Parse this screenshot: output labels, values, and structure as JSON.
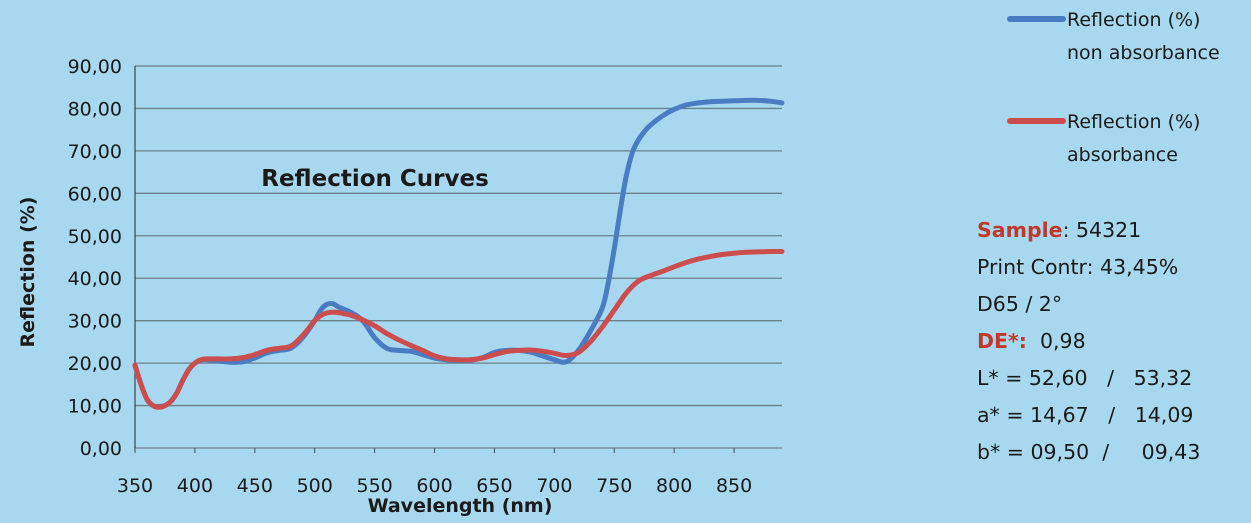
{
  "chart_data": {
    "type": "line",
    "title": "Reflection Curves",
    "xlabel": "Wavelength (nm)",
    "ylabel": "Reflection (%)",
    "xlim": [
      350,
      890
    ],
    "ylim": [
      0,
      90
    ],
    "xticks": [
      "350",
      "400",
      "450",
      "500",
      "550",
      "600",
      "650",
      "700",
      "750",
      "800",
      "850"
    ],
    "yticks": [
      "0,00",
      "10,00",
      "20,00",
      "30,00",
      "40,00",
      "50,00",
      "60,00",
      "70,00",
      "80,00",
      "90,00"
    ],
    "grid": "horizontal",
    "legend_position": "top-right",
    "series": [
      {
        "name": "Reflection (%) non absorbance",
        "color": "#4a7cc4",
        "x": [
          350,
          355,
          360,
          365,
          370,
          375,
          380,
          385,
          390,
          395,
          400,
          405,
          410,
          420,
          430,
          440,
          450,
          460,
          470,
          480,
          490,
          500,
          505,
          510,
          515,
          520,
          525,
          530,
          540,
          550,
          560,
          570,
          580,
          590,
          600,
          610,
          620,
          630,
          640,
          650,
          660,
          670,
          680,
          690,
          700,
          710,
          720,
          730,
          740,
          745,
          750,
          755,
          760,
          765,
          770,
          775,
          780,
          790,
          800,
          810,
          820,
          830,
          840,
          850,
          860,
          870,
          880,
          890
        ],
        "y": [
          19.5,
          15,
          11.5,
          10,
          9.8,
          10,
          11,
          13,
          16,
          18.5,
          20,
          20.7,
          20.8,
          20.5,
          20.2,
          20.3,
          21.2,
          22.4,
          23,
          23.5,
          26,
          30,
          32.5,
          33.8,
          34,
          33.2,
          32.6,
          32,
          30,
          26,
          23.5,
          23,
          22.8,
          22,
          21.2,
          20.8,
          20.6,
          20.7,
          21.3,
          22.5,
          23,
          23,
          22.6,
          21.7,
          20.8,
          20.3,
          23,
          27.5,
          33,
          39,
          47,
          56,
          64,
          69.5,
          72.5,
          74.5,
          76,
          78.2,
          79.8,
          80.8,
          81.3,
          81.6,
          81.7,
          81.8,
          81.9,
          81.9,
          81.7,
          81.3
        ]
      },
      {
        "name": "Reflection (%) absorbance",
        "color": "#cc4d4d",
        "x": [
          350,
          355,
          360,
          365,
          370,
          375,
          380,
          385,
          390,
          395,
          400,
          405,
          410,
          420,
          430,
          440,
          450,
          460,
          470,
          480,
          490,
          500,
          505,
          510,
          515,
          520,
          525,
          530,
          540,
          550,
          560,
          570,
          580,
          590,
          600,
          610,
          620,
          630,
          640,
          650,
          660,
          670,
          680,
          690,
          700,
          710,
          720,
          730,
          740,
          750,
          760,
          770,
          780,
          790,
          800,
          810,
          820,
          830,
          840,
          850,
          860,
          870,
          880,
          890
        ],
        "y": [
          19.5,
          15,
          11.5,
          10,
          9.6,
          10,
          11,
          13,
          16,
          18.5,
          20,
          20.8,
          21,
          21,
          21,
          21.3,
          22,
          23,
          23.5,
          24,
          26.5,
          30,
          31.2,
          31.8,
          32,
          31.9,
          31.6,
          31.3,
          30.2,
          28.8,
          27,
          25.5,
          24.2,
          23,
          21.7,
          21,
          20.8,
          20.8,
          21.2,
          22,
          22.7,
          23,
          23.1,
          22.8,
          22.3,
          21.8,
          22.5,
          25,
          28.5,
          32.5,
          36.5,
          39.3,
          40.6,
          41.6,
          42.7,
          43.7,
          44.5,
          45.1,
          45.6,
          45.9,
          46.1,
          46.2,
          46.3,
          46.3
        ]
      }
    ]
  },
  "legend": [
    {
      "line1": "Reflection (%)",
      "line2": "non absorbance",
      "color": "#4a7cc4"
    },
    {
      "line1": "Reflection (%)",
      "line2": "absorbance",
      "color": "#cc4d4d"
    }
  ],
  "info": {
    "sample_label": "Sample",
    "sample_value": ": 54321",
    "print_contr": "Print Contr: 43,45%",
    "illuminant": "D65 / 2°",
    "de_label": "DE*:",
    "de_value": "  0,98",
    "l_row": "L* = 52,60   /   53,32",
    "a_row": "a* = 14,67   /   14,09",
    "b_row": "b* = 09,50  /     09,43",
    "accent_color": "#c0392b"
  }
}
